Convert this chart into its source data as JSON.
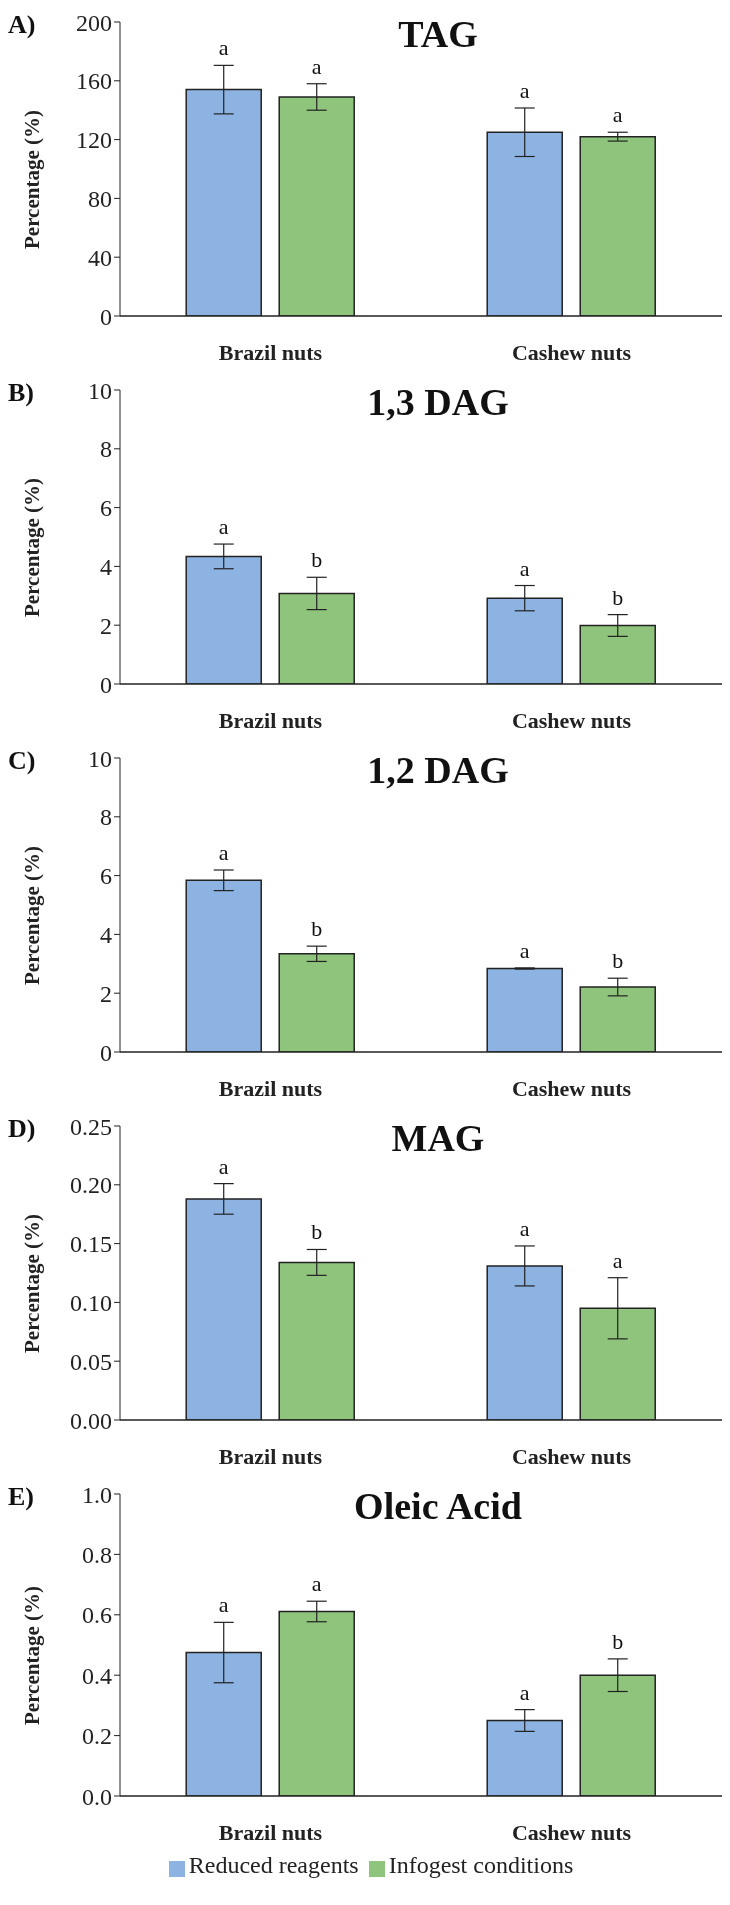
{
  "chart_data": [
    {
      "type": "bar",
      "title": "TAG",
      "annotations": [
        "A)"
      ],
      "ylabel": "Percentage (%)",
      "categories": [
        "Brazil nuts",
        "Cashew nuts"
      ],
      "ylim": [
        0,
        200
      ],
      "yticks": [
        0,
        40,
        80,
        120,
        160,
        200
      ],
      "grid": false,
      "legend": false,
      "series": [
        {
          "color": "#8db3e2",
          "values": [
            154,
            125
          ],
          "errors": [
            16.5,
            16.5
          ],
          "value_labels": [
            "a",
            "a"
          ]
        },
        {
          "color": "#8ec47c",
          "values": [
            149,
            122
          ],
          "errors": [
            9,
            3
          ],
          "value_labels": [
            "a",
            "a"
          ]
        }
      ]
    },
    {
      "type": "bar",
      "title": "1,3 DAG",
      "annotations": [
        "B)"
      ],
      "ylabel": "Percentage (%)",
      "categories": [
        "Brazil nuts",
        "Cashew nuts"
      ],
      "ylim": [
        0,
        10
      ],
      "yticks": [
        0,
        2,
        4,
        6,
        8,
        10
      ],
      "grid": false,
      "legend": false,
      "series": [
        {
          "color": "#8db3e2",
          "values": [
            4.34,
            2.92
          ],
          "errors": [
            0.42,
            0.43
          ],
          "value_labels": [
            "a",
            "a"
          ]
        },
        {
          "color": "#8ec47c",
          "values": [
            3.08,
            1.99
          ],
          "errors": [
            0.55,
            0.37
          ],
          "value_labels": [
            "b",
            "b"
          ]
        }
      ]
    },
    {
      "type": "bar",
      "title": "1,2 DAG",
      "annotations": [
        "C)"
      ],
      "ylabel": "Percentage (%)",
      "categories": [
        "Brazil nuts",
        "Cashew nuts"
      ],
      "ylim": [
        0,
        10
      ],
      "yticks": [
        0,
        2,
        4,
        6,
        8,
        10
      ],
      "grid": false,
      "legend": false,
      "series": [
        {
          "color": "#8db3e2",
          "values": [
            5.84,
            2.84
          ],
          "errors": [
            0.35,
            0.02
          ],
          "value_labels": [
            "a",
            "a"
          ]
        },
        {
          "color": "#8ec47c",
          "values": [
            3.34,
            2.21
          ],
          "errors": [
            0.26,
            0.3
          ],
          "value_labels": [
            "b",
            "b"
          ]
        }
      ]
    },
    {
      "type": "bar",
      "title": "MAG",
      "annotations": [
        "D)"
      ],
      "ylabel": "Percentage (%)",
      "categories": [
        "Brazil nuts",
        "Cashew nuts"
      ],
      "ylim": [
        0,
        0.25
      ],
      "yticks": [
        {
          "value": 0,
          "label": "0.00"
        },
        {
          "value": 0.05,
          "label": "0.05"
        },
        {
          "value": 0.1,
          "label": "0.10"
        },
        {
          "value": 0.15,
          "label": "0.15"
        },
        {
          "value": 0.2,
          "label": "0.20"
        },
        {
          "value": 0.25,
          "label": "0.25"
        }
      ],
      "grid": false,
      "legend": false,
      "series": [
        {
          "color": "#8db3e2",
          "values": [
            0.188,
            0.131
          ],
          "errors": [
            0.013,
            0.017
          ],
          "value_labels": [
            "a",
            "a"
          ]
        },
        {
          "color": "#8ec47c",
          "values": [
            0.134,
            0.095
          ],
          "errors": [
            0.011,
            0.026
          ],
          "value_labels": [
            "b",
            "a"
          ]
        }
      ]
    },
    {
      "type": "bar",
      "title": "Oleic Acid",
      "annotations": [
        "E)"
      ],
      "ylabel": "Percentage (%)",
      "categories": [
        "Brazil nuts",
        "Cashew nuts"
      ],
      "ylim": [
        0,
        1
      ],
      "yticks": [
        {
          "value": 0,
          "label": "0.0"
        },
        {
          "value": 0.2,
          "label": "0.2"
        },
        {
          "value": 0.4,
          "label": "0.4"
        },
        {
          "value": 0.6,
          "label": "0.6"
        },
        {
          "value": 0.8,
          "label": "0.8"
        },
        {
          "value": 1,
          "label": "1.0"
        }
      ],
      "grid": false,
      "legend": "bottom",
      "series": [
        {
          "name": "Reduced reagents",
          "color": "#8db3e2",
          "values": [
            0.475,
            0.25
          ],
          "errors": [
            0.1,
            0.036
          ],
          "value_labels": [
            "a",
            "a"
          ]
        },
        {
          "name": "Infogest conditions",
          "color": "#8ec47c",
          "values": [
            0.611,
            0.4
          ],
          "errors": [
            0.034,
            0.054
          ],
          "value_labels": [
            "a",
            "b"
          ]
        }
      ]
    }
  ]
}
